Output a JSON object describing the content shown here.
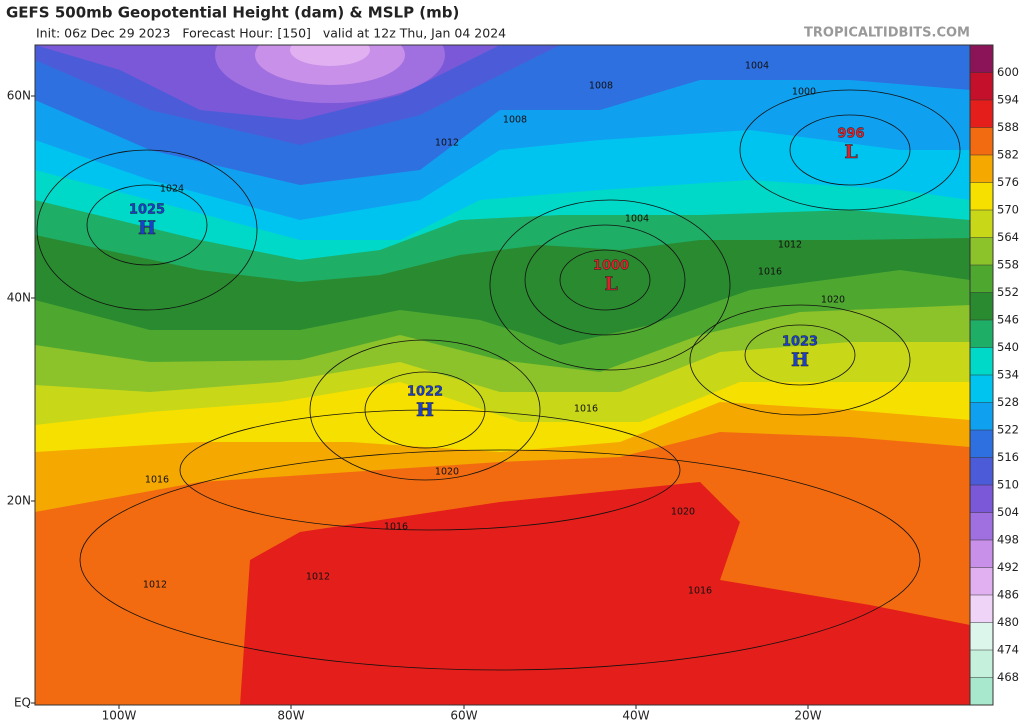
{
  "header": {
    "title": "GEFS 500mb Geopotential Height (dam) & MSLP (mb)",
    "subtitle": "Init: 06z Dec 29 2023   Forecast Hour: [150]   valid at 12z Thu, Jan 04 2024",
    "source": "TROPICALTIDBITS.COM"
  },
  "axes": {
    "lat_labels": [
      "60N",
      "40N",
      "20N",
      "EQ"
    ],
    "lon_labels": [
      "100W",
      "80W",
      "60W",
      "40W",
      "20W"
    ]
  },
  "colorbar": {
    "labels": [
      600,
      594,
      588,
      582,
      576,
      570,
      564,
      558,
      552,
      546,
      540,
      534,
      528,
      522,
      516,
      510,
      504,
      498,
      492,
      486,
      480,
      474,
      468
    ],
    "colors": [
      "#8b1458",
      "#c4102a",
      "#e41e1a",
      "#f26b10",
      "#f5a800",
      "#f6e000",
      "#c8d818",
      "#8cc22a",
      "#4ea830",
      "#2a8a30",
      "#1fae66",
      "#00d8c8",
      "#00c4f0",
      "#10a0f0",
      "#2f70e0",
      "#4c5cd8",
      "#7a58d8",
      "#a070e0",
      "#c890e8",
      "#e0b0f0",
      "#f0d4f8",
      "#dcf6ec",
      "#c4f0dc",
      "#a8e8cc"
    ]
  },
  "centers": [
    {
      "pressure": 1025,
      "letter": "H",
      "color": "#1a3fd0"
    },
    {
      "pressure": 1022,
      "letter": "H",
      "color": "#1a3fd0"
    },
    {
      "pressure": 1000,
      "letter": "L",
      "color": "#e0202a"
    },
    {
      "pressure": 996,
      "letter": "L",
      "color": "#e0202a"
    },
    {
      "pressure": 1023,
      "letter": "H",
      "color": "#1a3fd0"
    }
  ],
  "isobar_labels": [
    1004,
    1008,
    1000,
    1008,
    1012,
    1024,
    1004,
    1012,
    1016,
    1020,
    1016,
    1016,
    1020,
    1020,
    1016,
    1012,
    1012,
    1016
  ]
}
